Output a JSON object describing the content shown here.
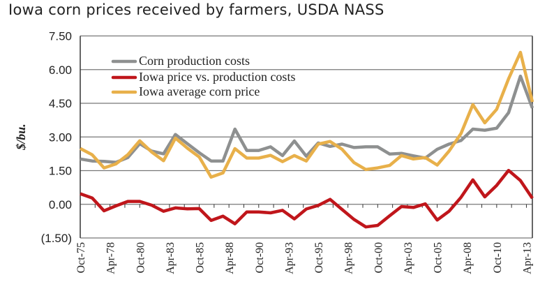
{
  "chart_data": {
    "type": "line",
    "title": "Iowa corn prices received by farmers, USDA NASS",
    "xlabel": "",
    "ylabel": "$/bu.",
    "ylim": [
      -1.5,
      7.5
    ],
    "yticks": [
      {
        "value": 7.5,
        "label": "7.50"
      },
      {
        "value": 6.0,
        "label": "6.00"
      },
      {
        "value": 4.5,
        "label": "4.50"
      },
      {
        "value": 3.0,
        "label": "3.00"
      },
      {
        "value": 1.5,
        "label": "1.50"
      },
      {
        "value": 0.0,
        "label": "0.00"
      },
      {
        "value": -1.5,
        "label": "(1.50)"
      }
    ],
    "xticks": [
      "Oct-75",
      "Apr-78",
      "Oct-80",
      "Apr-83",
      "Oct-85",
      "Apr-88",
      "Oct-90",
      "Apr-93",
      "Oct-95",
      "Apr-98",
      "Oct-00",
      "Apr-03",
      "Oct-05",
      "Apr-08",
      "Oct-10",
      "Apr-13"
    ],
    "x": [
      "Oct-75",
      "Oct-76",
      "Oct-77",
      "Oct-78",
      "Oct-79",
      "Oct-80",
      "Oct-81",
      "Oct-82",
      "Oct-83",
      "Oct-84",
      "Oct-85",
      "Oct-86",
      "Oct-87",
      "Oct-88",
      "Oct-89",
      "Oct-90",
      "Oct-91",
      "Oct-92",
      "Oct-93",
      "Oct-94",
      "Oct-95",
      "Oct-96",
      "Oct-97",
      "Oct-98",
      "Oct-99",
      "Oct-00",
      "Oct-01",
      "Oct-02",
      "Oct-03",
      "Oct-04",
      "Oct-05",
      "Oct-06",
      "Oct-07",
      "Oct-08",
      "Oct-09",
      "Oct-10",
      "Oct-11",
      "Oct-12",
      "Oct-13"
    ],
    "grid": true,
    "legend": "top-left",
    "series": [
      {
        "name": "Corn production costs",
        "color": "#8e9090",
        "values": [
          2.02,
          1.93,
          1.91,
          1.87,
          2.08,
          2.7,
          2.37,
          2.25,
          3.11,
          2.7,
          2.3,
          1.93,
          1.93,
          3.35,
          2.4,
          2.4,
          2.56,
          2.17,
          2.82,
          2.14,
          2.73,
          2.58,
          2.68,
          2.53,
          2.56,
          2.56,
          2.24,
          2.27,
          2.16,
          2.06,
          2.45,
          2.68,
          2.84,
          3.35,
          3.3,
          3.39,
          4.08,
          5.71,
          4.29
        ]
      },
      {
        "name": "Iowa price vs. production costs",
        "color": "#c0161b",
        "values": [
          0.47,
          0.28,
          -0.29,
          -0.07,
          0.13,
          0.13,
          -0.04,
          -0.31,
          -0.16,
          -0.2,
          -0.19,
          -0.72,
          -0.53,
          -0.87,
          -0.34,
          -0.34,
          -0.38,
          -0.27,
          -0.65,
          -0.21,
          -0.05,
          0.22,
          -0.23,
          -0.67,
          -1.01,
          -0.94,
          -0.51,
          -0.1,
          -0.14,
          0.02,
          -0.7,
          -0.31,
          0.31,
          1.09,
          0.33,
          0.84,
          1.51,
          1.06,
          0.27
        ]
      },
      {
        "name": "Iowa average corn price",
        "color": "#e8b04a",
        "values": [
          2.49,
          2.21,
          1.62,
          1.8,
          2.21,
          2.83,
          2.33,
          1.94,
          2.95,
          2.5,
          2.11,
          1.21,
          1.4,
          2.48,
          2.06,
          2.06,
          2.18,
          1.9,
          2.17,
          1.93,
          2.68,
          2.8,
          2.45,
          1.86,
          1.55,
          1.62,
          1.73,
          2.17,
          2.02,
          2.08,
          1.75,
          2.37,
          3.15,
          4.44,
          3.63,
          4.23,
          5.59,
          6.77,
          4.56
        ]
      }
    ]
  }
}
